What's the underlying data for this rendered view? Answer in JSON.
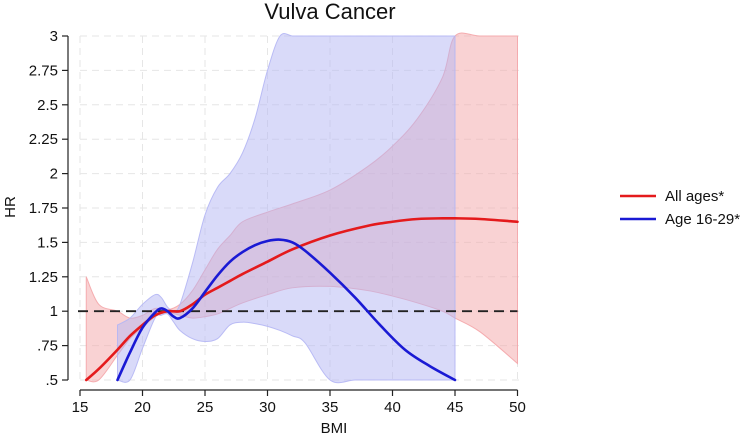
{
  "chart_data": {
    "type": "line",
    "title": "Vulva Cancer",
    "xlabel": "BMI",
    "ylabel": "HR",
    "xlim": [
      15,
      50
    ],
    "ylim": [
      0.5,
      3
    ],
    "x_ticks": [
      15,
      20,
      25,
      30,
      35,
      40,
      45,
      50
    ],
    "x_tick_labels": [
      "15",
      "20",
      "25",
      "30",
      "35",
      "40",
      "45",
      "50"
    ],
    "y_ticks": [
      0.5,
      0.75,
      1,
      1.25,
      1.5,
      1.75,
      2,
      2.25,
      2.5,
      2.75,
      3
    ],
    "y_tick_labels": [
      ".5",
      ".75",
      "1",
      "1.25",
      "1.5",
      "1.75",
      "2",
      "2.25",
      "2.5",
      "2.75",
      "3"
    ],
    "grid": true,
    "legend_position": "right",
    "reference_line": {
      "y": 1,
      "style": "dashed",
      "color": "#222222"
    },
    "series": [
      {
        "name": "All ages*",
        "color": "#e41a1c",
        "band_color": "#f4a5a8",
        "x": [
          15.5,
          16.5,
          18,
          19,
          20,
          21,
          22,
          23,
          24,
          25,
          26,
          27,
          28,
          30,
          32,
          35,
          38,
          40,
          42,
          44,
          45,
          47,
          50
        ],
        "y": [
          0.5,
          0.58,
          0.72,
          0.82,
          0.9,
          0.97,
          1.0,
          1.0,
          1.05,
          1.12,
          1.17,
          1.22,
          1.27,
          1.36,
          1.45,
          1.55,
          1.62,
          1.65,
          1.67,
          1.675,
          1.675,
          1.67,
          1.65
        ],
        "lower": [
          0.5,
          0.5,
          0.68,
          0.8,
          0.88,
          0.96,
          0.99,
          0.97,
          0.95,
          0.96,
          0.98,
          1.02,
          1.06,
          1.12,
          1.17,
          1.18,
          1.15,
          1.11,
          1.06,
          1.0,
          0.95,
          0.85,
          0.62
        ],
        "upper": [
          1.25,
          1.05,
          1.0,
          0.95,
          0.97,
          1.02,
          1.01,
          1.05,
          1.15,
          1.3,
          1.45,
          1.55,
          1.65,
          1.72,
          1.78,
          1.88,
          2.05,
          2.2,
          2.4,
          2.7,
          3.0,
          3.0,
          3.0
        ]
      },
      {
        "name": "Age 16-29*",
        "color": "#1a1ad4",
        "band_color": "#b4b6f4",
        "x": [
          18,
          19,
          20,
          21,
          21.5,
          22,
          22.5,
          23,
          24,
          25,
          26,
          27,
          28,
          29,
          30,
          31,
          32,
          33,
          35,
          37,
          39,
          41,
          43,
          45
        ],
        "y": [
          0.5,
          0.7,
          0.88,
          0.99,
          1.02,
          1.0,
          0.96,
          0.95,
          1.02,
          1.14,
          1.26,
          1.36,
          1.43,
          1.48,
          1.51,
          1.52,
          1.5,
          1.44,
          1.28,
          1.1,
          0.9,
          0.72,
          0.6,
          0.5
        ],
        "lower": [
          0.5,
          0.5,
          0.73,
          0.95,
          0.97,
          0.98,
          0.92,
          0.86,
          0.8,
          0.78,
          0.8,
          0.9,
          0.92,
          0.91,
          0.89,
          0.86,
          0.82,
          0.77,
          0.5,
          0.5,
          0.5,
          0.5,
          0.5,
          0.5
        ],
        "upper": [
          0.9,
          0.95,
          1.05,
          1.12,
          1.1,
          1.03,
          1.0,
          1.05,
          1.35,
          1.7,
          1.9,
          2.0,
          2.15,
          2.4,
          2.75,
          3.0,
          3.0,
          3.0,
          3.0,
          3.0,
          3.0,
          3.0,
          3.0,
          3.0
        ]
      }
    ]
  }
}
